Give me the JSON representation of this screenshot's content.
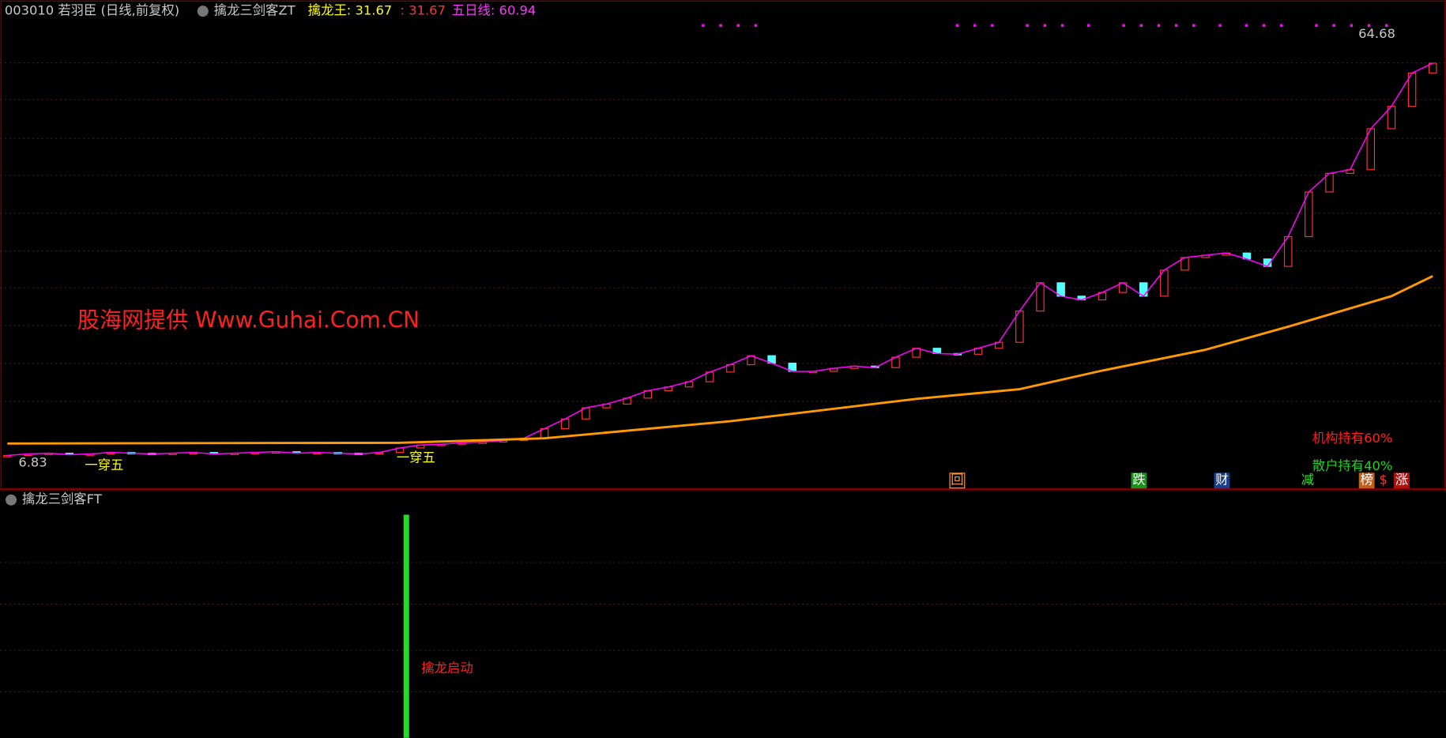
{
  "header": {
    "code_name": "003010 若羽臣 (日线,前复权)",
    "indicator": "擒龙三剑客ZT",
    "king_label": "擒龙王: 31.67",
    "king_value": ": 31.67",
    "ma5_label": "五日线: 60.94"
  },
  "price_chart": {
    "high_label": "64.68",
    "low_label": "6.83",
    "signal_label_1": "一穿五",
    "signal_label_2": "一穿五",
    "watermark": "股海网提供 Www.Guhai.Com.CN",
    "institution": "机构持有60%",
    "retail": "散户持有40%",
    "badges": [
      "回",
      "跌",
      "财",
      "减",
      "榜",
      "$",
      "涨"
    ],
    "ylim": [
      5,
      68
    ],
    "closes": [
      7.6,
      7.8,
      7.9,
      7.7,
      7.8,
      8.0,
      7.9,
      7.8,
      7.9,
      8.0,
      7.8,
      7.9,
      8.0,
      8.1,
      7.9,
      8.0,
      7.9,
      7.8,
      8.0,
      8.6,
      9.0,
      9.1,
      9.3,
      9.4,
      9.6,
      9.9,
      11.2,
      12.5,
      14.0,
      14.5,
      15.3,
      16.3,
      16.8,
      17.5,
      18.8,
      19.8,
      21.0,
      20.0,
      18.9,
      18.9,
      19.3,
      19.6,
      19.4,
      20.8,
      22.0,
      21.3,
      21.2,
      22.0,
      22.8,
      27.0,
      30.8,
      29.0,
      28.5,
      29.5,
      30.8,
      29.0,
      32.5,
      34.2,
      34.5,
      34.8,
      34.0,
      33.0,
      37.0,
      43.0,
      45.5,
      46.0,
      51.5,
      54.5,
      59.0,
      60.3
    ],
    "long_ma": {
      "x": [
        0,
        19,
        26,
        35,
        44,
        49,
        53,
        58,
        62,
        67,
        69
      ],
      "values": [
        9.2,
        9.3,
        9.9,
        12.2,
        15.2,
        16.5,
        19.0,
        21.8,
        24.9,
        29.0,
        31.7
      ]
    }
  },
  "ft_panel": {
    "title": "擒龙三剑客FT",
    "annotation": "擒龙启动",
    "bar_index": 19,
    "bar_value": 1,
    "ylim": [
      0,
      1
    ]
  }
}
